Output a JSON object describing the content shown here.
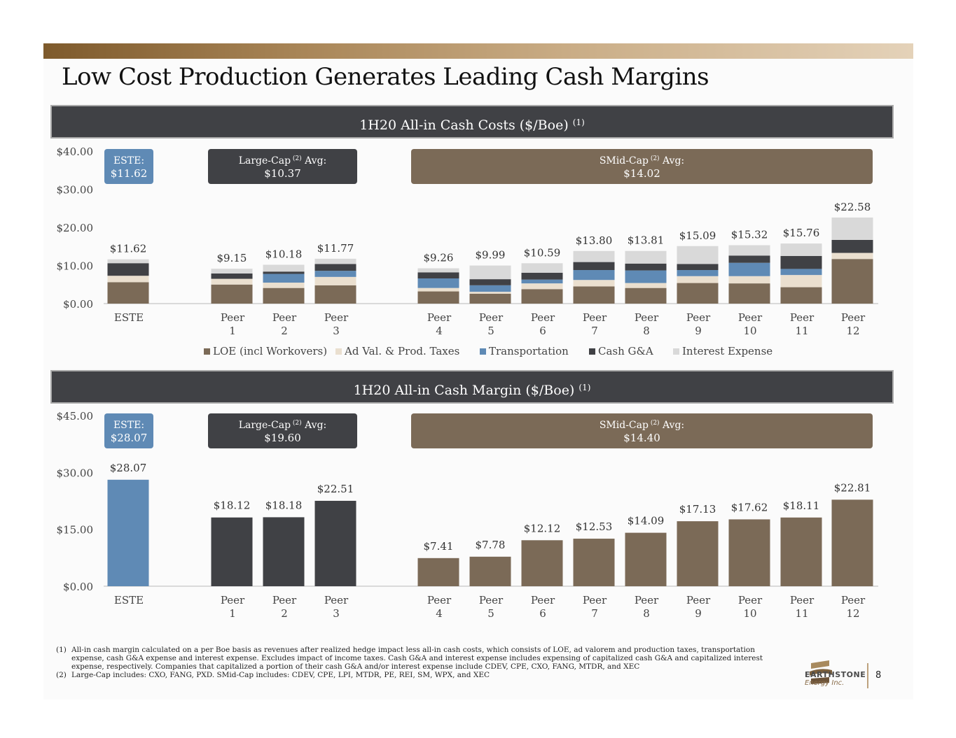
{
  "title": "Low Cost Production Generates Leading Cash Margins",
  "colors": {
    "loe": "#7b6a57",
    "taxes": "#eadfcf",
    "transport": "#5f8ab5",
    "ga": "#404145",
    "interest": "#d9d9d9",
    "este_bar": "#5f8ab5",
    "large_bar": "#404145",
    "smid_bar": "#7b6a57"
  },
  "chart_data": [
    {
      "type": "bar",
      "stacked": true,
      "title": "1H20 All-in Cash Costs ($/Boe)",
      "title_sup": "(1)",
      "categories": [
        "ESTE",
        "Peer 1",
        "Peer 2",
        "Peer 3",
        "Peer 4",
        "Peer 5",
        "Peer 6",
        "Peer 7",
        "Peer 8",
        "Peer 9",
        "Peer 10",
        "Peer 11",
        "Peer 12"
      ],
      "category_lines": [
        [
          "ESTE",
          ""
        ],
        [
          "Peer",
          "1"
        ],
        [
          "Peer",
          "2"
        ],
        [
          "Peer",
          "3"
        ],
        [
          "Peer",
          "4"
        ],
        [
          "Peer",
          "5"
        ],
        [
          "Peer",
          "6"
        ],
        [
          "Peer",
          "7"
        ],
        [
          "Peer",
          "8"
        ],
        [
          "Peer",
          "9"
        ],
        [
          "Peer",
          "10"
        ],
        [
          "Peer",
          "11"
        ],
        [
          "Peer",
          "12"
        ]
      ],
      "series": [
        {
          "name": "LOE (incl Workovers)",
          "key": "loe",
          "values": [
            5.6,
            5.0,
            4.1,
            4.8,
            3.2,
            2.6,
            3.8,
            4.5,
            4.1,
            5.4,
            5.3,
            4.3,
            11.7
          ]
        },
        {
          "name": "Ad Val. & Prod. Taxes",
          "key": "taxes",
          "values": [
            1.7,
            1.5,
            1.4,
            2.2,
            0.9,
            0.5,
            1.5,
            1.7,
            1.3,
            1.8,
            1.9,
            3.2,
            1.6
          ]
        },
        {
          "name": "Transportation",
          "key": "transport",
          "values": [
            0.0,
            0.0,
            2.3,
            1.6,
            2.5,
            1.7,
            1.0,
            2.6,
            3.3,
            1.6,
            3.5,
            1.6,
            0.0
          ]
        },
        {
          "name": "Cash G&A",
          "key": "ga",
          "values": [
            3.3,
            1.4,
            0.6,
            1.8,
            1.6,
            1.6,
            1.8,
            2.1,
            1.8,
            1.6,
            1.9,
            3.4,
            3.4
          ]
        },
        {
          "name": "Interest Expense",
          "key": "interest",
          "values": [
            1.02,
            1.25,
            1.78,
            1.37,
            1.06,
            3.59,
            2.49,
            2.9,
            3.31,
            4.69,
            2.72,
            3.26,
            5.88
          ]
        }
      ],
      "totals": [
        11.62,
        9.15,
        10.18,
        11.77,
        9.26,
        9.99,
        10.59,
        13.8,
        13.81,
        15.09,
        15.32,
        15.76,
        22.58
      ],
      "total_labels": [
        "$11.62",
        "$9.15",
        "$10.18",
        "$11.77",
        "$9.26",
        "$9.99",
        "$10.59",
        "$13.80",
        "$13.81",
        "$15.09",
        "$15.32",
        "$15.76",
        "$22.58"
      ],
      "ylim": [
        0,
        40
      ],
      "y_ticks": [
        "$0.00",
        "$10.00",
        "$20.00",
        "$30.00",
        "$40.00"
      ],
      "y_tick_values": [
        0,
        10,
        20,
        30,
        40
      ],
      "legend": [
        "LOE (incl Workovers)",
        "Ad Val. & Prod. Taxes",
        "Transportation",
        "Cash G&A",
        "Interest Expense"
      ],
      "callouts": {
        "este": {
          "line1": "ESTE:",
          "line2": "$11.62"
        },
        "large": {
          "line1": "Large-Cap",
          "sup": "(2)",
          "line1b": "Avg:",
          "line2": "$10.37"
        },
        "smid": {
          "line1": "SMid-Cap",
          "sup": "(2)",
          "line1b": "Avg:",
          "line2": "$14.02"
        }
      }
    },
    {
      "type": "bar",
      "title": "1H20 All-in Cash Margin ($/Boe)",
      "title_sup": "(1)",
      "categories": [
        "ESTE",
        "Peer 1",
        "Peer 2",
        "Peer 3",
        "Peer 4",
        "Peer 5",
        "Peer 6",
        "Peer 7",
        "Peer 8",
        "Peer 9",
        "Peer 10",
        "Peer 11",
        "Peer 12"
      ],
      "category_lines": [
        [
          "ESTE",
          ""
        ],
        [
          "Peer",
          "1"
        ],
        [
          "Peer",
          "2"
        ],
        [
          "Peer",
          "3"
        ],
        [
          "Peer",
          "4"
        ],
        [
          "Peer",
          "5"
        ],
        [
          "Peer",
          "6"
        ],
        [
          "Peer",
          "7"
        ],
        [
          "Peer",
          "8"
        ],
        [
          "Peer",
          "9"
        ],
        [
          "Peer",
          "10"
        ],
        [
          "Peer",
          "11"
        ],
        [
          "Peer",
          "12"
        ]
      ],
      "values": [
        28.07,
        18.12,
        18.18,
        22.51,
        7.41,
        7.78,
        12.12,
        12.53,
        14.09,
        17.13,
        17.62,
        18.11,
        22.81
      ],
      "value_labels": [
        "$28.07",
        "$18.12",
        "$18.18",
        "$22.51",
        "$7.41",
        "$7.78",
        "$12.12",
        "$12.53",
        "$14.09",
        "$17.13",
        "$17.62",
        "$18.11",
        "$22.81"
      ],
      "groups": [
        "este",
        "large",
        "large",
        "large",
        "smid",
        "smid",
        "smid",
        "smid",
        "smid",
        "smid",
        "smid",
        "smid",
        "smid"
      ],
      "ylim": [
        0,
        45
      ],
      "y_ticks": [
        "$0.00",
        "$15.00",
        "$30.00",
        "$45.00"
      ],
      "y_tick_values": [
        0,
        15,
        30,
        45
      ],
      "callouts": {
        "este": {
          "line1": "ESTE:",
          "line2": "$28.07"
        },
        "large": {
          "line1": "Large-Cap",
          "sup": "(2)",
          "line1b": "Avg:",
          "line2": "$19.60"
        },
        "smid": {
          "line1": "SMid-Cap",
          "sup": "(2)",
          "line1b": "Avg:",
          "line2": "$14.40"
        }
      }
    }
  ],
  "footnotes": [
    {
      "num": "(1)",
      "text": "All-in cash margin calculated on a per Boe basis as revenues after realized hedge impact less all-in cash costs, which consists of LOE, ad valorem and production taxes, transportation expense, cash G&A expense and interest expense. Excludes impact of income taxes. Cash G&A and interest expense includes expensing of capitalized cash G&A and capitalized interest expense, respectively. Companies that capitalized a portion of their cash G&A and/or interest expense include CDEV, CPE, CXO, FANG, MTDR, and XEC"
    },
    {
      "num": "(2)",
      "text": "Large-Cap includes: CXO, FANG, PXD. SMid-Cap includes: CDEV, CPE, LPI, MTDR, PE, REI, SM, WPX, and XEC"
    }
  ],
  "logo": {
    "name": "EARTHSTONE",
    "sub": "Energy Inc."
  },
  "page_number": "8"
}
